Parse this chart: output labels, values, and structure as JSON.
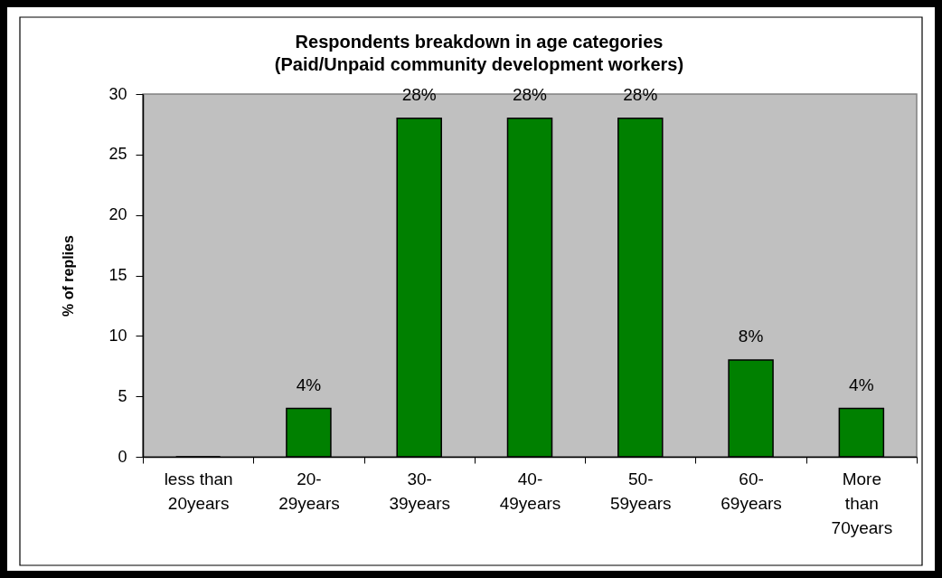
{
  "chart_data": {
    "type": "bar",
    "title": "Respondents breakdown in age categories\n(Paid/Unpaid community development workers)",
    "ylabel": "% of replies",
    "categories": [
      "less than 20years",
      "20-29years",
      "30-39years",
      "40-49years",
      "50-59years",
      "60-69years",
      "More than 70years"
    ],
    "values": [
      0,
      4,
      28,
      28,
      28,
      8,
      4
    ],
    "value_labels": [
      null,
      "4%",
      "28%",
      "28%",
      "28%",
      "8%",
      "4%"
    ],
    "color": "#008000",
    "ylim": [
      0,
      30
    ],
    "yticks": [
      0,
      5,
      10,
      15,
      20,
      25,
      30
    ],
    "grid": false
  }
}
